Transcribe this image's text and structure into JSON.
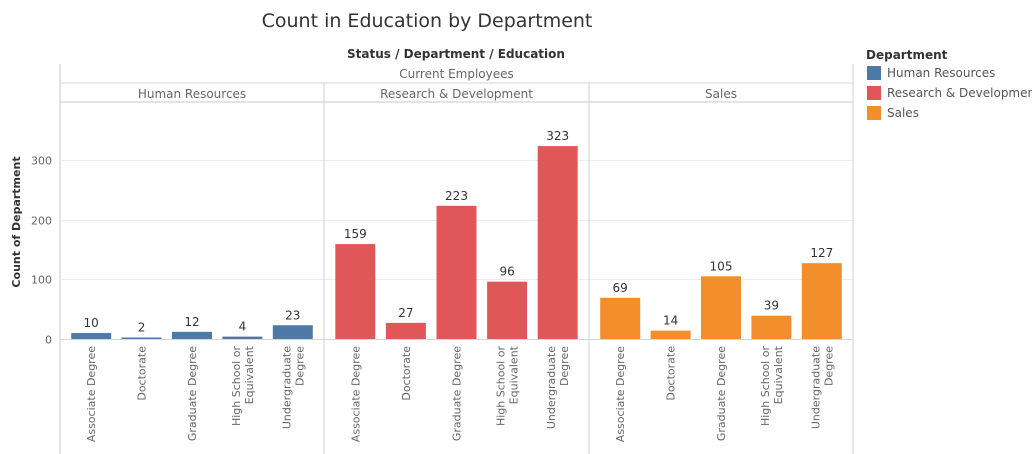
{
  "chart_data": {
    "type": "bar",
    "title": "Count in Education by Department",
    "column_header": "Status / Department / Education",
    "status_label": "Current Employees",
    "ylabel": "Count of Department",
    "ylim": [
      0,
      360
    ],
    "yticks": [
      0,
      100,
      200,
      300
    ],
    "grid": true,
    "legend": {
      "title": "Department",
      "placement": "right",
      "items": [
        {
          "label": "Human Resources",
          "color": "#4e79a7"
        },
        {
          "label": "Research & Development",
          "color": "#e15759"
        },
        {
          "label": "Sales",
          "color": "#f28e2b"
        }
      ]
    },
    "panels": [
      {
        "department": "Human Resources",
        "color": "#4e79a7",
        "categories": [
          [
            "Associate Degree"
          ],
          [
            "Doctorate"
          ],
          [
            "Graduate Degree"
          ],
          [
            "High School or",
            "Equivalent"
          ],
          [
            "Undergraduate",
            "Degree"
          ]
        ],
        "values": [
          10,
          2,
          12,
          4,
          23
        ]
      },
      {
        "department": "Research & Development",
        "color": "#e15759",
        "categories": [
          [
            "Associate Degree"
          ],
          [
            "Doctorate"
          ],
          [
            "Graduate Degree"
          ],
          [
            "High School or",
            "Equivalent"
          ],
          [
            "Undergraduate",
            "Degree"
          ]
        ],
        "values": [
          159,
          27,
          223,
          96,
          323
        ]
      },
      {
        "department": "Sales",
        "color": "#f28e2b",
        "categories": [
          [
            "Associate Degree"
          ],
          [
            "Doctorate"
          ],
          [
            "Graduate Degree"
          ],
          [
            "High School or",
            "Equivalent"
          ],
          [
            "Undergraduate",
            "Degree"
          ]
        ],
        "values": [
          69,
          14,
          105,
          39,
          127
        ]
      }
    ]
  }
}
